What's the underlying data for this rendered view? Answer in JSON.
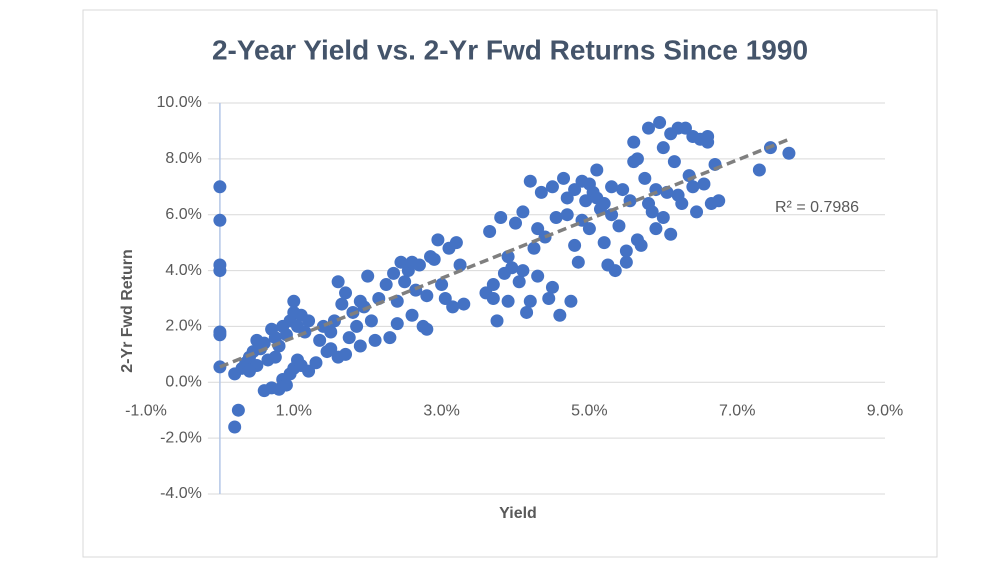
{
  "chart_data": {
    "type": "scatter",
    "title": "2-Year Yield vs. 2-Yr Fwd Returns Since 1990",
    "x_label": "Yield",
    "y_label": "2-Yr Fwd Return",
    "color": "#4472c4",
    "x": [
      0,
      0,
      0,
      0,
      0,
      0,
      0,
      0.2,
      0.25,
      0.2,
      0.3,
      0.35,
      0.4,
      0.45,
      0.5,
      0.55,
      0.6,
      0.65,
      0.7,
      0.75,
      0.8,
      0.85,
      0.9,
      0.95,
      1.0,
      1.0,
      1.05,
      1.1,
      1.15,
      0.6,
      0.7,
      0.8,
      0.85,
      0.9,
      0.95,
      1.0,
      1.05,
      0.75,
      1.1,
      1.2,
      1.2,
      0.5,
      0.4,
      1.3,
      1.35,
      1.4,
      1.45,
      1.5,
      1.55,
      1.6,
      1.65,
      1.7,
      1.6,
      1.75,
      1.8,
      1.85,
      1.9,
      1.95,
      2.0,
      2.05,
      2.1,
      2.15,
      1.5,
      1.7,
      1.9,
      2.25,
      2.3,
      2.35,
      2.4,
      2.45,
      2.5,
      2.55,
      2.6,
      2.65,
      2.7,
      2.75,
      2.8,
      2.85,
      2.9,
      2.95,
      3.0,
      3.05,
      3.1,
      3.15,
      3.2,
      3.25,
      3.3,
      2.4,
      2.6,
      2.8,
      3.6,
      3.65,
      3.7,
      3.75,
      3.8,
      3.85,
      3.9,
      3.95,
      4.0,
      4.05,
      4.1,
      4.15,
      4.2,
      4.25,
      4.3,
      4.35,
      4.4,
      4.45,
      4.5,
      4.55,
      4.6,
      3.7,
      3.9,
      4.1,
      4.3,
      4.5,
      4.2,
      4.65,
      4.7,
      4.75,
      4.8,
      4.85,
      4.9,
      4.95,
      5.0,
      5.05,
      5.1,
      5.15,
      5.2,
      5.25,
      5.3,
      5.35,
      5.4,
      5.45,
      5.5,
      5.55,
      5.6,
      4.7,
      4.9,
      5.1,
      5.3,
      5.5,
      4.8,
      5.0,
      5.2,
      5.6,
      5.65,
      5.7,
      5.75,
      5.8,
      5.85,
      5.9,
      5.95,
      6.0,
      6.05,
      6.1,
      6.15,
      6.2,
      6.25,
      6.3,
      6.35,
      6.4,
      6.45,
      6.5,
      6.55,
      6.6,
      6.65,
      6.7,
      6.75,
      5.65,
      5.8,
      6.0,
      6.2,
      6.4,
      6.6,
      5.9,
      6.1,
      7.3,
      7.45,
      7.7
    ],
    "values": [
      7.0,
      5.8,
      4.2,
      4.0,
      1.8,
      1.7,
      0.55,
      -1.6,
      -1.0,
      0.3,
      0.5,
      0.7,
      0.9,
      1.1,
      0.6,
      1.2,
      1.4,
      0.8,
      1.9,
      1.6,
      1.3,
      2.0,
      1.7,
      2.2,
      2.5,
      2.9,
      2.0,
      2.4,
      1.8,
      -0.3,
      -0.2,
      -0.25,
      0.1,
      -0.1,
      0.3,
      0.5,
      0.8,
      0.9,
      0.6,
      0.4,
      2.2,
      1.5,
      0.4,
      0.7,
      1.5,
      2.0,
      1.1,
      1.8,
      2.2,
      3.6,
      2.8,
      3.2,
      0.9,
      1.6,
      2.5,
      2.0,
      1.3,
      2.7,
      3.8,
      2.2,
      1.5,
      3.0,
      1.2,
      1.0,
      2.9,
      3.5,
      1.6,
      3.9,
      2.9,
      4.3,
      3.6,
      4.0,
      2.4,
      3.3,
      4.2,
      2.0,
      3.1,
      4.5,
      4.4,
      5.1,
      3.5,
      3.0,
      4.8,
      2.7,
      5.0,
      4.2,
      2.8,
      2.1,
      4.3,
      1.9,
      3.2,
      5.4,
      3.5,
      2.2,
      5.9,
      3.9,
      2.9,
      4.1,
      5.7,
      3.6,
      6.1,
      2.5,
      7.2,
      4.8,
      3.8,
      6.8,
      5.2,
      3.0,
      7.0,
      5.9,
      2.4,
      3.0,
      4.5,
      4.0,
      5.5,
      3.4,
      2.9,
      7.3,
      6.0,
      2.9,
      6.9,
      4.3,
      7.2,
      6.5,
      5.5,
      6.8,
      7.6,
      6.2,
      5.0,
      4.2,
      6.0,
      4.0,
      5.6,
      6.9,
      4.7,
      6.5,
      8.6,
      6.6,
      5.8,
      6.6,
      7.0,
      4.3,
      4.9,
      7.1,
      6.4,
      7.9,
      5.1,
      4.9,
      7.3,
      9.1,
      6.1,
      5.5,
      9.3,
      8.4,
      6.8,
      5.3,
      7.9,
      9.1,
      6.4,
      9.1,
      7.4,
      8.8,
      6.1,
      8.7,
      7.1,
      8.8,
      6.4,
      7.8,
      6.5,
      8.0,
      6.4,
      5.9,
      6.7,
      7.0,
      8.6,
      6.9,
      8.9,
      7.6,
      8.4,
      8.2
    ],
    "trendline": {
      "x": [
        0,
        7.7
      ],
      "values": [
        0.55,
        8.7
      ],
      "color": "#7f7f7f",
      "annotation": "R² = 0.7986"
    },
    "xlim": [
      -1,
      9
    ],
    "xticks": [
      {
        "value": -1,
        "label": "-1.0%"
      },
      {
        "value": 1,
        "label": "1.0%"
      },
      {
        "value": 3,
        "label": "3.0%"
      },
      {
        "value": 5,
        "label": "5.0%"
      },
      {
        "value": 7,
        "label": "7.0%"
      },
      {
        "value": 9,
        "label": "9.0%"
      }
    ],
    "ylim": [
      -4,
      10
    ],
    "yticks": [
      {
        "value": -4,
        "label": "-4.0%"
      },
      {
        "value": -2,
        "label": "-2.0%"
      },
      {
        "value": 0,
        "label": "0.0%"
      },
      {
        "value": 2,
        "label": "2.0%"
      },
      {
        "value": 4,
        "label": "4.0%"
      },
      {
        "value": 6,
        "label": "6.0%"
      },
      {
        "value": 8,
        "label": "8.0%"
      },
      {
        "value": 10,
        "label": "10.0%"
      }
    ],
    "grid": true
  }
}
